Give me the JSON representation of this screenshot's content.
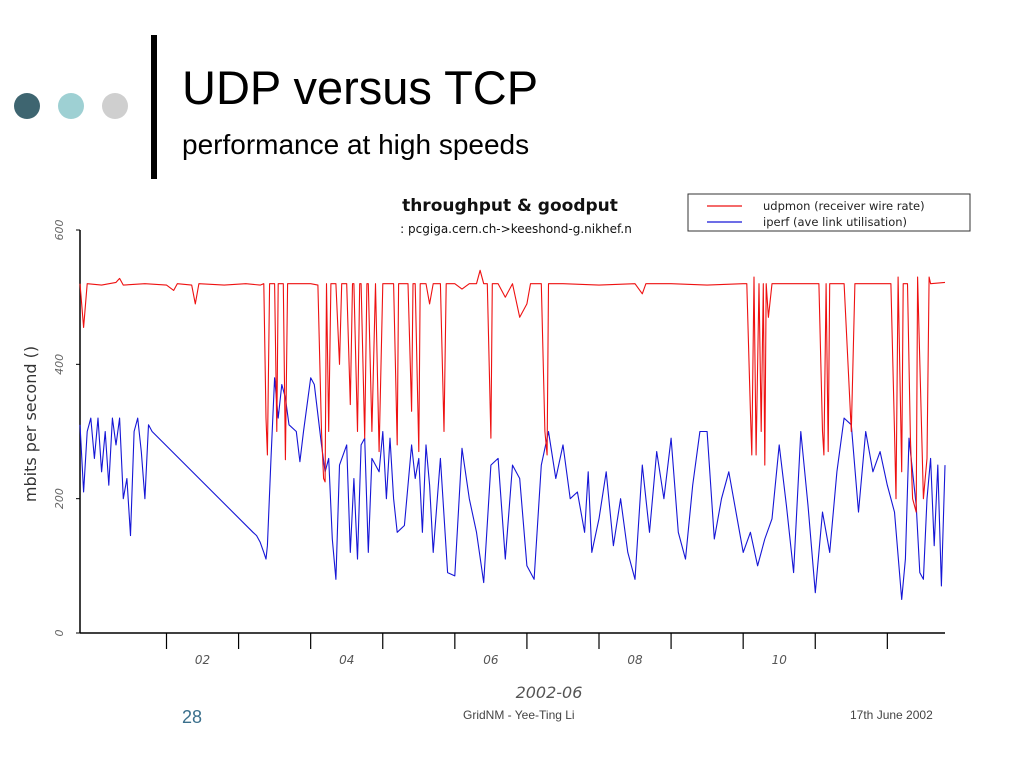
{
  "slide": {
    "title": "UDP versus TCP",
    "subtitle": "performance at high speeds",
    "colors": {
      "dot1": "#3e6570",
      "dot2": "#9ed0d3",
      "dot3": "#cfcfcf"
    }
  },
  "footer": {
    "slide_number": "28",
    "center": "GridNM - Yee-Ting Li",
    "date": "17th June 2002"
  },
  "chart_data": {
    "type": "line",
    "title": "throughput & goodput",
    "subtitle": ": pcgiga.cern.ch->keeshond-g.nikhef.n",
    "xlabel": "2002-06",
    "ylabel": "mbits per second ()",
    "ylim": [
      0,
      600
    ],
    "yticks": [
      "0",
      "200",
      "400",
      "600"
    ],
    "xlim": [
      0.3,
      12.3
    ],
    "xticks": [
      "02",
      "04",
      "06",
      "08",
      "10"
    ],
    "legend_position": "top-right",
    "grid": false,
    "series": [
      {
        "name": "udpmon (receiver wire rate)",
        "color": "#ee1111",
        "points": [
          [
            0.3,
            520
          ],
          [
            0.35,
            455
          ],
          [
            0.4,
            520
          ],
          [
            0.6,
            518
          ],
          [
            0.8,
            522
          ],
          [
            0.85,
            528
          ],
          [
            0.9,
            518
          ],
          [
            1.2,
            520
          ],
          [
            1.5,
            518
          ],
          [
            1.6,
            510
          ],
          [
            1.65,
            520
          ],
          [
            1.85,
            518
          ],
          [
            1.9,
            490
          ],
          [
            1.95,
            520
          ],
          [
            2.3,
            518
          ],
          [
            2.6,
            520
          ],
          [
            2.8,
            518
          ],
          [
            2.85,
            520
          ],
          [
            2.88,
            320
          ],
          [
            2.9,
            265
          ],
          [
            2.93,
            520
          ],
          [
            3.0,
            520
          ],
          [
            3.03,
            300
          ],
          [
            3.05,
            520
          ],
          [
            3.12,
            520
          ],
          [
            3.15,
            258
          ],
          [
            3.18,
            520
          ],
          [
            3.3,
            520
          ],
          [
            3.35,
            520
          ],
          [
            3.5,
            520
          ],
          [
            3.6,
            518
          ],
          [
            3.65,
            300
          ],
          [
            3.68,
            230
          ],
          [
            3.7,
            225
          ],
          [
            3.72,
            520
          ],
          [
            3.75,
            300
          ],
          [
            3.78,
            520
          ],
          [
            3.85,
            520
          ],
          [
            3.9,
            400
          ],
          [
            3.93,
            520
          ],
          [
            4.0,
            520
          ],
          [
            4.05,
            340
          ],
          [
            4.08,
            520
          ],
          [
            4.1,
            520
          ],
          [
            4.15,
            300
          ],
          [
            4.18,
            520
          ],
          [
            4.2,
            520
          ],
          [
            4.25,
            290
          ],
          [
            4.28,
            520
          ],
          [
            4.3,
            520
          ],
          [
            4.35,
            300
          ],
          [
            4.4,
            520
          ],
          [
            4.45,
            270
          ],
          [
            4.5,
            520
          ],
          [
            4.55,
            520
          ],
          [
            4.65,
            520
          ],
          [
            4.7,
            280
          ],
          [
            4.72,
            520
          ],
          [
            4.8,
            520
          ],
          [
            4.85,
            520
          ],
          [
            4.9,
            330
          ],
          [
            4.92,
            520
          ],
          [
            4.95,
            520
          ],
          [
            5.0,
            270
          ],
          [
            5.02,
            520
          ],
          [
            5.1,
            520
          ],
          [
            5.15,
            490
          ],
          [
            5.2,
            520
          ],
          [
            5.3,
            520
          ],
          [
            5.35,
            300
          ],
          [
            5.38,
            520
          ],
          [
            5.5,
            520
          ],
          [
            5.6,
            512
          ],
          [
            5.7,
            520
          ],
          [
            5.8,
            520
          ],
          [
            5.85,
            540
          ],
          [
            5.9,
            520
          ],
          [
            5.95,
            520
          ],
          [
            6.0,
            290
          ],
          [
            6.02,
            520
          ],
          [
            6.1,
            520
          ],
          [
            6.2,
            500
          ],
          [
            6.3,
            520
          ],
          [
            6.4,
            470
          ],
          [
            6.5,
            490
          ],
          [
            6.55,
            520
          ],
          [
            6.6,
            520
          ],
          [
            6.7,
            520
          ],
          [
            6.75,
            300
          ],
          [
            6.78,
            265
          ],
          [
            6.8,
            520
          ],
          [
            6.9,
            520
          ],
          [
            7.0,
            520
          ],
          [
            7.5,
            518
          ],
          [
            8.0,
            520
          ],
          [
            8.1,
            505
          ],
          [
            8.15,
            520
          ],
          [
            8.5,
            520
          ],
          [
            9.0,
            518
          ],
          [
            9.5,
            520
          ],
          [
            9.55,
            520
          ],
          [
            9.6,
            330
          ],
          [
            9.62,
            265
          ],
          [
            9.65,
            530
          ],
          [
            9.68,
            265
          ],
          [
            9.72,
            520
          ],
          [
            9.75,
            300
          ],
          [
            9.78,
            520
          ],
          [
            9.8,
            250
          ],
          [
            9.82,
            520
          ],
          [
            9.85,
            470
          ],
          [
            9.9,
            520
          ],
          [
            10.0,
            520
          ],
          [
            10.1,
            520
          ],
          [
            10.3,
            520
          ],
          [
            10.4,
            520
          ],
          [
            10.5,
            520
          ],
          [
            10.55,
            520
          ],
          [
            10.6,
            300
          ],
          [
            10.62,
            265
          ],
          [
            10.65,
            520
          ],
          [
            10.68,
            270
          ],
          [
            10.7,
            520
          ],
          [
            10.75,
            520
          ],
          [
            10.8,
            520
          ],
          [
            10.9,
            520
          ],
          [
            11.0,
            300
          ],
          [
            11.05,
            520
          ],
          [
            11.2,
            520
          ],
          [
            11.4,
            520
          ],
          [
            11.55,
            520
          ],
          [
            11.6,
            300
          ],
          [
            11.62,
            200
          ],
          [
            11.65,
            530
          ],
          [
            11.7,
            240
          ],
          [
            11.72,
            520
          ],
          [
            11.78,
            520
          ],
          [
            11.82,
            290
          ],
          [
            11.85,
            200
          ],
          [
            11.9,
            180
          ],
          [
            11.92,
            530
          ],
          [
            12.0,
            200
          ],
          [
            12.05,
            260
          ],
          [
            12.08,
            530
          ],
          [
            12.1,
            520
          ],
          [
            12.3,
            522
          ]
        ]
      },
      {
        "name": "iperf (ave link utilisation)",
        "color": "#1616d6",
        "points": [
          [
            0.3,
            310
          ],
          [
            0.35,
            210
          ],
          [
            0.4,
            300
          ],
          [
            0.45,
            320
          ],
          [
            0.5,
            260
          ],
          [
            0.55,
            320
          ],
          [
            0.6,
            240
          ],
          [
            0.65,
            300
          ],
          [
            0.7,
            220
          ],
          [
            0.75,
            320
          ],
          [
            0.8,
            280
          ],
          [
            0.85,
            320
          ],
          [
            0.9,
            200
          ],
          [
            0.95,
            230
          ],
          [
            1.0,
            145
          ],
          [
            1.05,
            300
          ],
          [
            1.1,
            320
          ],
          [
            1.15,
            270
          ],
          [
            1.2,
            200
          ],
          [
            1.25,
            310
          ],
          [
            1.3,
            300
          ],
          [
            2.7,
            150
          ],
          [
            2.75,
            145
          ],
          [
            2.8,
            135
          ],
          [
            2.85,
            120
          ],
          [
            2.88,
            110
          ],
          [
            2.9,
            130
          ],
          [
            2.95,
            260
          ],
          [
            3.0,
            380
          ],
          [
            3.05,
            320
          ],
          [
            3.1,
            370
          ],
          [
            3.15,
            350
          ],
          [
            3.2,
            310
          ],
          [
            3.3,
            300
          ],
          [
            3.35,
            255
          ],
          [
            3.4,
            300
          ],
          [
            3.5,
            380
          ],
          [
            3.55,
            370
          ],
          [
            3.65,
            280
          ],
          [
            3.7,
            240
          ],
          [
            3.75,
            260
          ],
          [
            3.8,
            140
          ],
          [
            3.85,
            80
          ],
          [
            3.9,
            250
          ],
          [
            4.0,
            280
          ],
          [
            4.05,
            120
          ],
          [
            4.1,
            230
          ],
          [
            4.15,
            110
          ],
          [
            4.2,
            280
          ],
          [
            4.25,
            290
          ],
          [
            4.3,
            120
          ],
          [
            4.35,
            260
          ],
          [
            4.45,
            240
          ],
          [
            4.5,
            300
          ],
          [
            4.55,
            200
          ],
          [
            4.6,
            290
          ],
          [
            4.65,
            200
          ],
          [
            4.7,
            150
          ],
          [
            4.8,
            160
          ],
          [
            4.9,
            280
          ],
          [
            4.95,
            230
          ],
          [
            5.0,
            260
          ],
          [
            5.05,
            150
          ],
          [
            5.1,
            280
          ],
          [
            5.15,
            220
          ],
          [
            5.2,
            120
          ],
          [
            5.3,
            260
          ],
          [
            5.4,
            90
          ],
          [
            5.5,
            85
          ],
          [
            5.6,
            275
          ],
          [
            5.7,
            200
          ],
          [
            5.8,
            150
          ],
          [
            5.9,
            75
          ],
          [
            6.0,
            250
          ],
          [
            6.1,
            260
          ],
          [
            6.2,
            110
          ],
          [
            6.3,
            250
          ],
          [
            6.4,
            230
          ],
          [
            6.5,
            100
          ],
          [
            6.6,
            80
          ],
          [
            6.7,
            250
          ],
          [
            6.8,
            300
          ],
          [
            6.9,
            230
          ],
          [
            7.0,
            280
          ],
          [
            7.1,
            200
          ],
          [
            7.2,
            210
          ],
          [
            7.3,
            150
          ],
          [
            7.35,
            240
          ],
          [
            7.4,
            120
          ],
          [
            7.5,
            170
          ],
          [
            7.6,
            240
          ],
          [
            7.7,
            130
          ],
          [
            7.8,
            200
          ],
          [
            7.9,
            120
          ],
          [
            8.0,
            80
          ],
          [
            8.1,
            250
          ],
          [
            8.2,
            150
          ],
          [
            8.3,
            270
          ],
          [
            8.4,
            200
          ],
          [
            8.5,
            290
          ],
          [
            8.6,
            150
          ],
          [
            8.7,
            110
          ],
          [
            8.8,
            220
          ],
          [
            8.9,
            300
          ],
          [
            9.0,
            300
          ],
          [
            9.1,
            140
          ],
          [
            9.2,
            200
          ],
          [
            9.3,
            240
          ],
          [
            9.4,
            180
          ],
          [
            9.5,
            120
          ],
          [
            9.6,
            150
          ],
          [
            9.7,
            100
          ],
          [
            9.8,
            140
          ],
          [
            9.9,
            170
          ],
          [
            10.0,
            280
          ],
          [
            10.1,
            190
          ],
          [
            10.2,
            90
          ],
          [
            10.3,
            300
          ],
          [
            10.4,
            190
          ],
          [
            10.5,
            60
          ],
          [
            10.6,
            180
          ],
          [
            10.7,
            120
          ],
          [
            10.8,
            240
          ],
          [
            10.9,
            320
          ],
          [
            11.0,
            310
          ],
          [
            11.1,
            180
          ],
          [
            11.2,
            300
          ],
          [
            11.3,
            240
          ],
          [
            11.4,
            270
          ],
          [
            11.5,
            220
          ],
          [
            11.6,
            180
          ],
          [
            11.7,
            50
          ],
          [
            11.75,
            110
          ],
          [
            11.8,
            290
          ],
          [
            11.85,
            240
          ],
          [
            11.9,
            190
          ],
          [
            11.95,
            90
          ],
          [
            12.0,
            80
          ],
          [
            12.05,
            200
          ],
          [
            12.1,
            260
          ],
          [
            12.15,
            130
          ],
          [
            12.2,
            250
          ],
          [
            12.25,
            70
          ],
          [
            12.3,
            250
          ]
        ]
      }
    ]
  }
}
